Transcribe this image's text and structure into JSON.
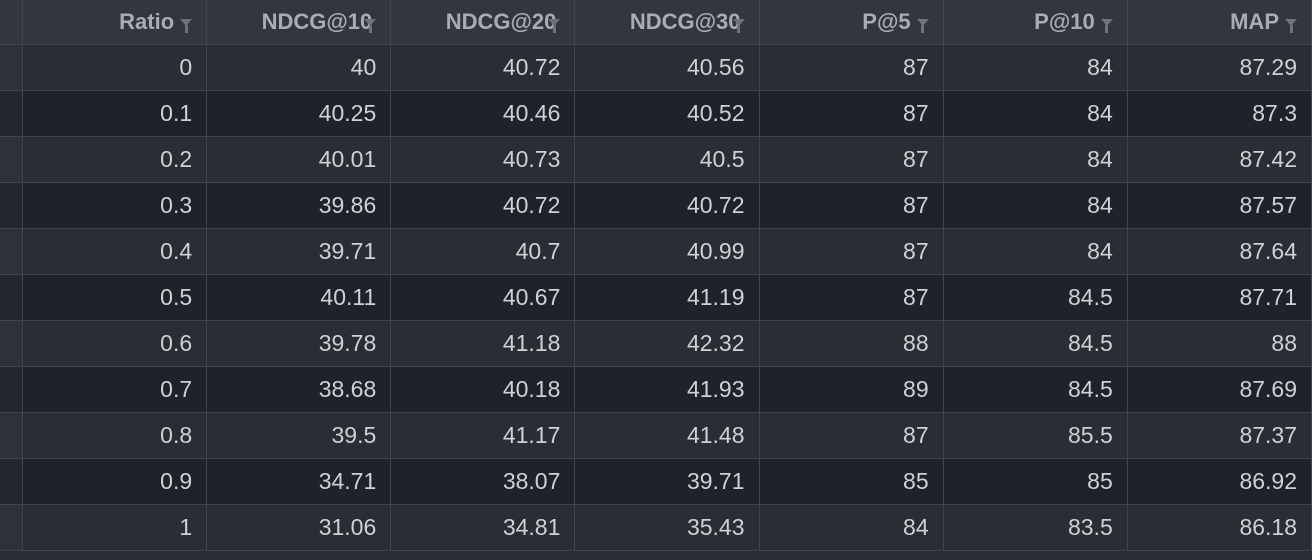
{
  "table": {
    "columns": [
      "Ratio",
      "NDCG@10",
      "NDCG@20",
      "NDCG@30",
      "P@5",
      "P@10",
      "MAP"
    ],
    "filter_icon": "filter-icon",
    "rows": [
      [
        "0",
        "40",
        "40.72",
        "40.56",
        "87",
        "84",
        "87.29"
      ],
      [
        "0.1",
        "40.25",
        "40.46",
        "40.52",
        "87",
        "84",
        "87.3"
      ],
      [
        "0.2",
        "40.01",
        "40.73",
        "40.5",
        "87",
        "84",
        "87.42"
      ],
      [
        "0.3",
        "39.86",
        "40.72",
        "40.72",
        "87",
        "84",
        "87.57"
      ],
      [
        "0.4",
        "39.71",
        "40.7",
        "40.99",
        "87",
        "84",
        "87.64"
      ],
      [
        "0.5",
        "40.11",
        "40.67",
        "41.19",
        "87",
        "84.5",
        "87.71"
      ],
      [
        "0.6",
        "39.78",
        "41.18",
        "42.32",
        "88",
        "84.5",
        "88"
      ],
      [
        "0.7",
        "38.68",
        "40.18",
        "41.93",
        "89",
        "84.5",
        "87.69"
      ],
      [
        "0.8",
        "39.5",
        "41.17",
        "41.48",
        "87",
        "85.5",
        "87.37"
      ],
      [
        "0.9",
        "34.71",
        "38.07",
        "39.71",
        "85",
        "85",
        "86.92"
      ],
      [
        "1",
        "31.06",
        "34.81",
        "35.43",
        "84",
        "83.5",
        "86.18"
      ]
    ]
  },
  "colors": {
    "background": "#2b2d34",
    "header": "#33363e",
    "row_alt": "#20222a",
    "border": "#41444d",
    "text": "#cfd1d6",
    "header_text": "#a9acb4"
  }
}
